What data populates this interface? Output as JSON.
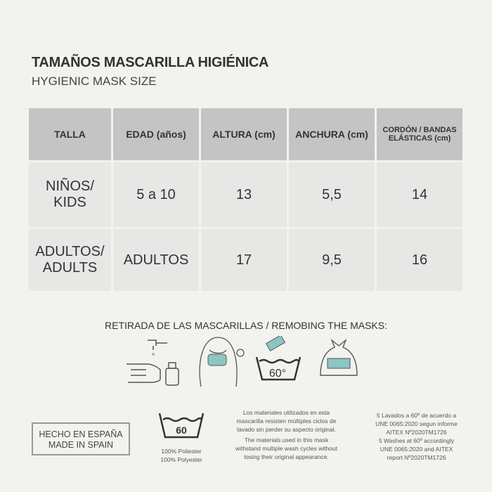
{
  "header": {
    "title": "TAMAÑOS MASCARILLA HIGIÉNICA",
    "subtitle": "HYGIENIC MASK SIZE"
  },
  "table": {
    "columns": [
      "TALLA",
      "EDAD (años)",
      "ALTURA (cm)",
      "ANCHURA (cm)",
      "CORDÓN / BANDAS ELÁSTICAS (cm)"
    ],
    "rows": [
      [
        "NIÑOS/ KIDS",
        "5 a 10",
        "13",
        "5,5",
        "14"
      ],
      [
        "ADULTOS/ ADULTS",
        "ADULTOS",
        "17",
        "9,5",
        "16"
      ]
    ]
  },
  "removal": {
    "title": "RETIRADA DE LAS MASCARILLAS / REMOBING THE MASKS:",
    "icons": [
      "hand-wash-icon",
      "person-removing-mask-icon",
      "wash-60-icon",
      "mask-bag-icon"
    ],
    "wash_temp": "60°"
  },
  "footer": {
    "made_in_es": "HECHO EN ESPAÑA",
    "made_in_en": "MADE IN SPAIN",
    "wash_symbol": "60",
    "material_es": "100% Poliester",
    "material_en": "100% Polyester",
    "durability_es": "Los materiales utilizados en esta mascarilla resisten múltiples ciclos de lavado sin perder su aspecto original.",
    "durability_en": "The materials used in this mask withstand multiple wash cycles without losing their original appearance.",
    "cert_es": "5 Lavados a 60º de acuerdo a UNE 0065:2020 segun informe AITEX Nº2020TM1726",
    "cert_en": "5 Washes at 60º accordingly UNE 0065:2020 and AITEX report Nº2020TM1726"
  },
  "colors": {
    "mask": "#8cc6c2",
    "header_bg": "#c4c4c4",
    "cell_bg": "#e7e7e5"
  }
}
